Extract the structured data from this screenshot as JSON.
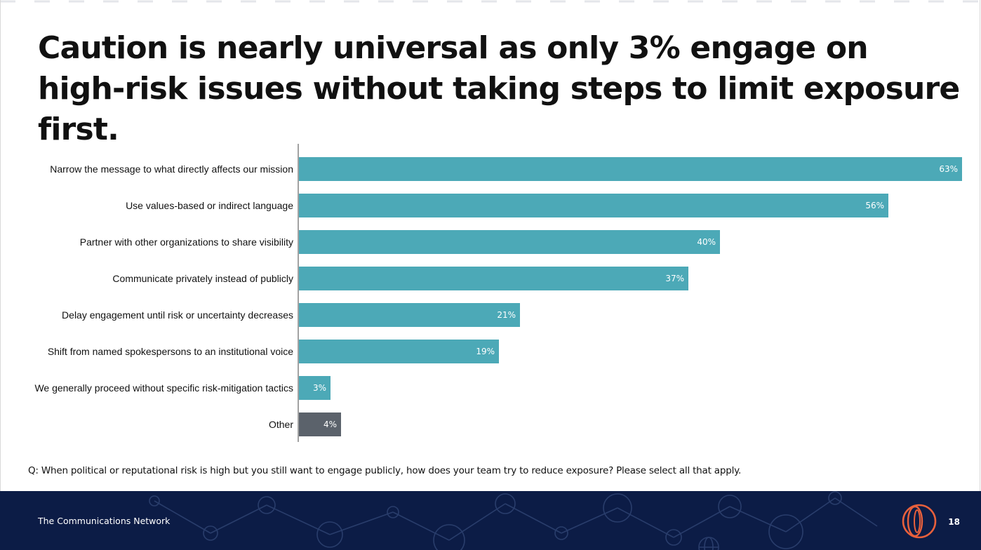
{
  "slide": {
    "title": "Caution is nearly universal as only 3% engage on high-risk issues without taking steps to limit exposure first.",
    "footnote": "Q: When political or reputational risk is high but you still want to engage publicly, how does your team try to reduce exposure? Please select all that apply.",
    "org_name": "The Communications Network",
    "page_number": "18"
  },
  "colors": {
    "bar_primary": "#4ca9b7",
    "bar_other": "#5b626b",
    "footer_bg": "#0c1c46",
    "logo_accent": "#e8603c"
  },
  "chart_data": {
    "type": "bar",
    "orientation": "horizontal",
    "title": "",
    "xlabel": "",
    "ylabel": "",
    "xlim": [
      0,
      63
    ],
    "grid": false,
    "value_suffix": "%",
    "categories": [
      "Narrow the message to what directly affects our mission",
      "Use values-based or indirect language",
      "Partner with other organizations to share visibility",
      "Communicate privately instead of publicly",
      "Delay engagement until risk or uncertainty decreases",
      "Shift from named spokespersons to an institutional voice",
      "We generally proceed without specific risk-mitigation tactics",
      "Other"
    ],
    "values": [
      63,
      56,
      40,
      37,
      21,
      19,
      3,
      4
    ],
    "labels": [
      "63%",
      "56%",
      "40%",
      "37%",
      "21%",
      "19%",
      "3%",
      "4%"
    ],
    "bar_colors": [
      "primary",
      "primary",
      "primary",
      "primary",
      "primary",
      "primary",
      "primary",
      "other"
    ]
  }
}
